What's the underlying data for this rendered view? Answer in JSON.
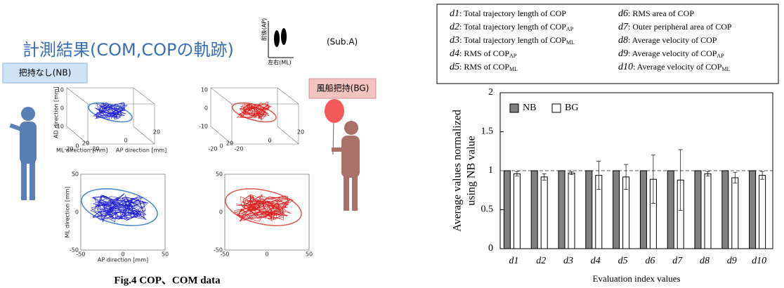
{
  "slide": {
    "title": "計測結果(COM,COPの軌跡)",
    "subject": "(Sub.A)",
    "foot_ap": "前後(AP)",
    "foot_ml": "左右(ML)",
    "nb_label": "把持なし(NB)",
    "bg_label": "風船把持(BG)",
    "plot3d": {
      "z_label": "AD direction [mm]",
      "ml_label": "ML direction [mm]",
      "ap_label": "AP direction [mm]",
      "z_ticks": [
        10,
        0,
        -10
      ],
      "ml_ticks": [
        -20,
        0,
        20
      ],
      "ap_ticks": [
        -20,
        0,
        20
      ]
    },
    "plot2d": {
      "y_label": "ML direction [mm]",
      "x_label": "AP direction [mm]",
      "y_ticks": [
        50,
        0,
        -50
      ],
      "x_ticks": [
        -50,
        0,
        50
      ]
    },
    "caption": "Fig.4 COP、COM data"
  },
  "definitions": [
    {
      "id": "d1",
      "text": ": Total trajectory length of COP"
    },
    {
      "id": "d2",
      "text": ": Total trajectory length of COP",
      "sub": "AP"
    },
    {
      "id": "d3",
      "text": ": Total trajectory length of COP",
      "sub": "ML"
    },
    {
      "id": "d4",
      "text": ": RMS of COP",
      "sub": "AP"
    },
    {
      "id": "d5",
      "text": ": RMS of COP",
      "sub": "ML"
    },
    {
      "id": "d6",
      "text": ": RMS area of COP"
    },
    {
      "id": "d7",
      "text": ": Outer peripheral area of COP"
    },
    {
      "id": "d8",
      "text": ": Average velocity of COP"
    },
    {
      "id": "d9",
      "text": ": Average velocity of  COP",
      "sub": "AP"
    },
    {
      "id": "d10",
      "text": ": Average velocity of COP",
      "sub": "ML"
    }
  ],
  "chart_data": {
    "type": "bar",
    "ylabel": [
      "Average values  normalized",
      "using NB value"
    ],
    "xlabel": "Evaluation index values",
    "categories": [
      "d1",
      "d2",
      "d3",
      "d4",
      "d5",
      "d6",
      "d7",
      "d8",
      "d9",
      "d10"
    ],
    "series": [
      {
        "name": "NB",
        "color": "#808080",
        "values": [
          1,
          1,
          1,
          1,
          1,
          1,
          1,
          1,
          1,
          1
        ]
      },
      {
        "name": "BG",
        "color": "#ffffff",
        "values": [
          0.96,
          0.92,
          0.97,
          0.94,
          0.92,
          0.89,
          0.88,
          0.96,
          0.91,
          0.94
        ],
        "errors": [
          0.03,
          0.04,
          0.02,
          0.18,
          0.16,
          0.31,
          0.39,
          0.03,
          0.07,
          0.05
        ]
      }
    ],
    "ylim": [
      0,
      2
    ],
    "yticks": [
      0,
      0.5,
      1,
      1.5,
      2
    ],
    "reference_line": 1,
    "legend": "upper left"
  }
}
